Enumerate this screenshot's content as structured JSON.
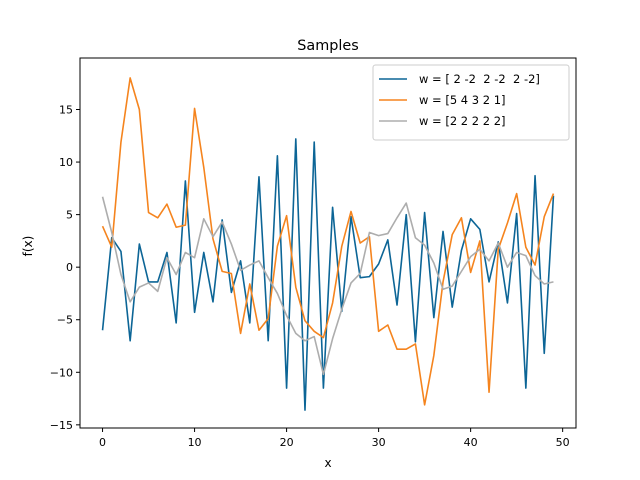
{
  "chart_data": {
    "type": "line",
    "title": "Samples",
    "xlabel": "x",
    "ylabel": "f(x)",
    "xlim": [
      -2.45,
      51.45
    ],
    "ylim": [
      -15.3,
      19.9
    ],
    "xticks": [
      0,
      10,
      20,
      30,
      40,
      50
    ],
    "yticks": [
      -15,
      -10,
      -5,
      0,
      5,
      10,
      15
    ],
    "grid": false,
    "legend_position": "top-right",
    "x": [
      0,
      1,
      2,
      3,
      4,
      5,
      6,
      7,
      8,
      9,
      10,
      11,
      12,
      13,
      14,
      15,
      16,
      17,
      18,
      19,
      20,
      21,
      22,
      23,
      24,
      25,
      26,
      27,
      28,
      29,
      30,
      31,
      32,
      33,
      34,
      35,
      36,
      37,
      38,
      39,
      40,
      41,
      42,
      43,
      44,
      45,
      46,
      47,
      48,
      49
    ],
    "series": [
      {
        "name": "w = [ 2 -2  2 -2  2 -2]",
        "color": "#0c6596",
        "values": [
          -6.0,
          2.8,
          1.5,
          -7.0,
          2.2,
          -1.4,
          -1.4,
          1.4,
          -5.3,
          8.2,
          -4.3,
          1.4,
          -3.3,
          4.5,
          -2.4,
          0.6,
          -5.3,
          8.6,
          -7.0,
          10.6,
          -11.5,
          12.2,
          -13.6,
          11.9,
          -11.5,
          5.7,
          -4.2,
          4.8,
          -1.0,
          -0.9,
          0.3,
          2.6,
          -3.6,
          5.0,
          -7.1,
          5.2,
          -4.8,
          3.4,
          -3.8,
          1.6,
          4.6,
          3.6,
          -1.4,
          2.4,
          -3.4,
          5.1,
          -11.5,
          8.7,
          -8.2,
          6.8
        ]
      },
      {
        "name": "w = [5 4 3 2 1]",
        "color": "#f5841e",
        "values": [
          3.9,
          1.9,
          11.9,
          18.0,
          15.0,
          5.2,
          4.7,
          6.0,
          3.8,
          4.0,
          15.1,
          9.5,
          2.7,
          -0.4,
          -0.6,
          -6.3,
          -1.6,
          -6.0,
          -4.9,
          2.0,
          4.9,
          -1.9,
          -5.1,
          -6.1,
          -6.7,
          -3.4,
          2.0,
          5.3,
          2.3,
          2.9,
          -6.1,
          -5.5,
          -7.8,
          -7.8,
          -7.3,
          -13.1,
          -8.4,
          -1.4,
          3.1,
          4.7,
          -0.5,
          2.5,
          -11.9,
          1.7,
          4.2,
          7.0,
          1.9,
          0.2,
          4.8,
          7.0
        ]
      },
      {
        "name": "w = [2 2 2 2 2]",
        "color": "#adadad",
        "values": [
          6.7,
          3.3,
          -0.7,
          -3.3,
          -1.9,
          -1.5,
          -2.3,
          0.9,
          -0.7,
          1.4,
          0.9,
          4.6,
          2.9,
          4.3,
          2.2,
          -0.3,
          0.2,
          0.6,
          -1.0,
          -2.5,
          -4.6,
          -6.3,
          -7.0,
          -6.6,
          -10.2,
          -6.8,
          -4.0,
          -1.5,
          -0.6,
          3.3,
          3.0,
          3.2,
          4.7,
          6.1,
          2.8,
          2.1,
          0.4,
          -2.1,
          -1.8,
          -0.4,
          1.0,
          1.7,
          0.6,
          2.3,
          0.0,
          1.4,
          1.1,
          -0.8,
          -1.6,
          -1.4
        ]
      }
    ]
  }
}
